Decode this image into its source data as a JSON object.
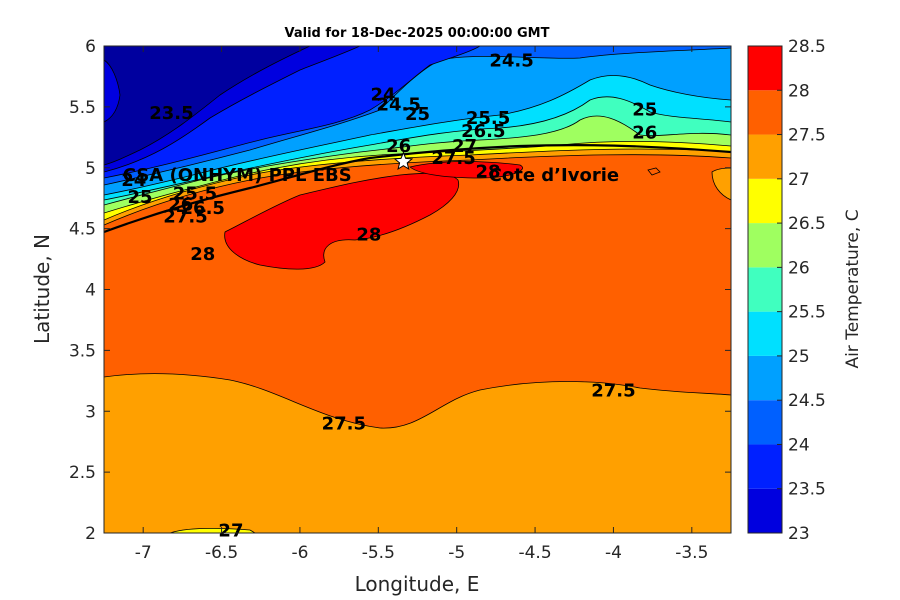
{
  "chart_data": {
    "type": "heatmap",
    "subtype": "filled-contour",
    "title": "Valid for 18-Dec-2025 00:00:00 GMT",
    "xlabel": "Longitude, E",
    "ylabel": "Latitude, N",
    "xlim": [
      -7.25,
      -3.25
    ],
    "ylim": [
      2,
      6
    ],
    "xticks": [
      "-7",
      "-6.5",
      "-6",
      "-5.5",
      "-5",
      "-4.5",
      "-4",
      "-3.5"
    ],
    "yticks": [
      "2",
      "2.5",
      "3",
      "3.5",
      "4",
      "4.5",
      "5",
      "5.5",
      "6"
    ],
    "colorbar": {
      "label": "Air Temperature, C",
      "range": [
        23,
        28.5
      ],
      "ticks": [
        "23",
        "23.5",
        "24",
        "24.5",
        "25",
        "25.5",
        "26",
        "26.5",
        "27",
        "27.5",
        "28",
        "28.5"
      ],
      "colors": [
        "#00009f",
        "#0000df",
        "#0020ff",
        "#0060ff",
        "#00a0ff",
        "#00e0ff",
        "#40ffbf",
        "#9fff60",
        "#ffff00",
        "#ffa000",
        "#ff6000",
        "#ff0000",
        "#a00000"
      ]
    },
    "contour_labels": [
      {
        "text": "24.5",
        "lon": -4.65,
        "lat": 5.88
      },
      {
        "text": "23.5",
        "lon": -6.82,
        "lat": 5.45
      },
      {
        "text": "24",
        "lon": -5.47,
        "lat": 5.6
      },
      {
        "text": "24.5",
        "lon": -5.37,
        "lat": 5.52
      },
      {
        "text": "25",
        "lon": -5.25,
        "lat": 5.44
      },
      {
        "text": "25.5",
        "lon": -4.8,
        "lat": 5.41
      },
      {
        "text": "25",
        "lon": -3.8,
        "lat": 5.48
      },
      {
        "text": "26",
        "lon": -3.8,
        "lat": 5.29
      },
      {
        "text": "26",
        "lon": -5.37,
        "lat": 5.18
      },
      {
        "text": "26.5",
        "lon": -4.83,
        "lat": 5.3
      },
      {
        "text": "27",
        "lon": -4.95,
        "lat": 5.18
      },
      {
        "text": "27.5",
        "lon": -5.02,
        "lat": 5.08
      },
      {
        "text": "28",
        "lon": -4.8,
        "lat": 4.97
      },
      {
        "text": "24",
        "lon": -7.06,
        "lat": 4.9
      },
      {
        "text": "25",
        "lon": -7.02,
        "lat": 4.76
      },
      {
        "text": "25.5",
        "lon": -6.67,
        "lat": 4.79
      },
      {
        "text": "26",
        "lon": -6.76,
        "lat": 4.7
      },
      {
        "text": "26.5",
        "lon": -6.62,
        "lat": 4.67
      },
      {
        "text": "27.5",
        "lon": -6.73,
        "lat": 4.6
      },
      {
        "text": "28",
        "lon": -6.62,
        "lat": 4.29
      },
      {
        "text": "28",
        "lon": -5.56,
        "lat": 4.45
      },
      {
        "text": "27.5",
        "lon": -4.0,
        "lat": 3.17
      },
      {
        "text": "27.5",
        "lon": -5.72,
        "lat": 2.9
      },
      {
        "text": "27",
        "lon": -6.44,
        "lat": 2.02
      }
    ],
    "annotations": [
      {
        "text": "CSA (ONHYM) PPL EBS",
        "lon": -6.4,
        "lat": 4.94
      },
      {
        "text": "Cote d’Ivorie",
        "lon": -4.38,
        "lat": 4.94
      }
    ],
    "marker": {
      "lon": -5.34,
      "lat": 5.05,
      "shape": "star"
    }
  }
}
